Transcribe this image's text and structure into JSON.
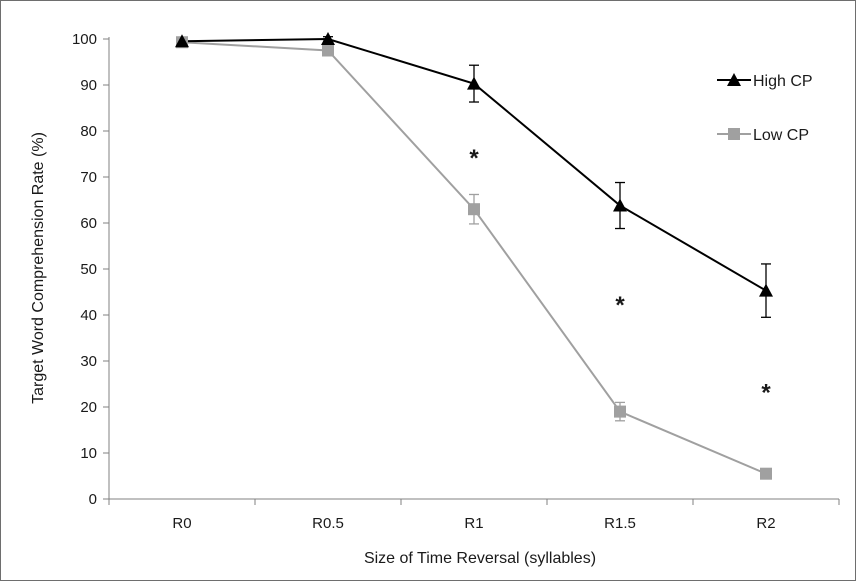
{
  "chart_data": {
    "type": "line",
    "title": "",
    "xlabel": "Size of Time Reversal (syllables)",
    "ylabel": "Target Word Comprehension Rate (%)",
    "categories": [
      "R0",
      "R0.5",
      "R1",
      "R1.5",
      "R2"
    ],
    "ylim": [
      0,
      100
    ],
    "yticks": [
      0,
      10,
      20,
      30,
      40,
      50,
      60,
      70,
      80,
      90,
      100
    ],
    "grid": false,
    "legend": "top-right",
    "series": [
      {
        "name": "High CP",
        "marker": "triangle",
        "color": "#000000",
        "values": [
          99.5,
          100,
          90.3,
          63.8,
          45.3
        ],
        "error": [
          0.5,
          0.5,
          4.0,
          5.0,
          5.8
        ]
      },
      {
        "name": "Low CP",
        "marker": "square",
        "color": "#a0a0a0",
        "values": [
          99.3,
          97.5,
          63.0,
          19.0,
          5.5
        ],
        "error": [
          0.5,
          0.5,
          3.2,
          2.0,
          0
        ]
      }
    ],
    "annotations": [
      {
        "text": "*",
        "category": "R1",
        "y": 75
      },
      {
        "text": "*",
        "category": "R1.5",
        "y": 43
      },
      {
        "text": "*",
        "category": "R2",
        "y": 24
      }
    ]
  }
}
